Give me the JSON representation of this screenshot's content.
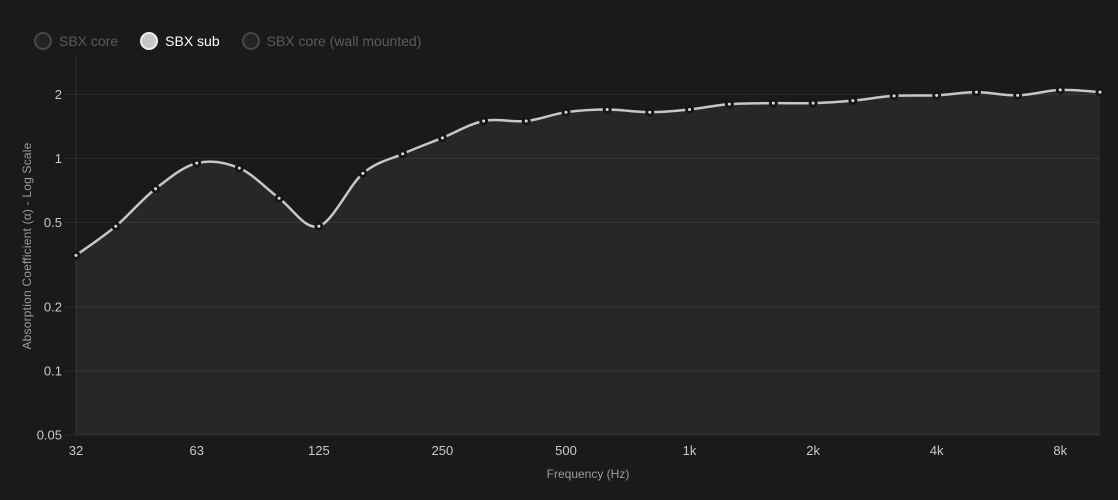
{
  "legend": {
    "items": [
      {
        "label": "SBX core",
        "active": false
      },
      {
        "label": "SBX sub",
        "active": true
      },
      {
        "label": "SBX core (wall mounted)",
        "active": false
      }
    ]
  },
  "chart_data": {
    "type": "line",
    "title": "",
    "xlabel": "Frequency (Hz)",
    "ylabel": "Absorption Coefficient (α) - Log Scale",
    "x_scale": "log",
    "y_scale": "log",
    "xlim": [
      32,
      10000
    ],
    "ylim": [
      0.05,
      3
    ],
    "grid": true,
    "legend_position": "top-left",
    "x_ticks": [
      {
        "value": 32,
        "label": "32"
      },
      {
        "value": 63,
        "label": "63"
      },
      {
        "value": 125,
        "label": "125"
      },
      {
        "value": 250,
        "label": "250"
      },
      {
        "value": 500,
        "label": "500"
      },
      {
        "value": 1000,
        "label": "1k"
      },
      {
        "value": 2000,
        "label": "2k"
      },
      {
        "value": 4000,
        "label": "4k"
      },
      {
        "value": 8000,
        "label": "8k"
      }
    ],
    "y_ticks": [
      {
        "value": 2,
        "label": "2"
      },
      {
        "value": 1,
        "label": "1"
      },
      {
        "value": 0.5,
        "label": "0.5"
      },
      {
        "value": 0.2,
        "label": "0.2"
      },
      {
        "value": 0.1,
        "label": "0.1"
      },
      {
        "value": 0.05,
        "label": "0.05"
      }
    ],
    "series": [
      {
        "name": "SBX core",
        "selected": false,
        "x": [],
        "values": []
      },
      {
        "name": "SBX sub",
        "selected": true,
        "x": [
          32,
          40,
          50,
          63,
          80,
          100,
          125,
          160,
          200,
          250,
          315,
          400,
          500,
          630,
          800,
          1000,
          1250,
          1600,
          2000,
          2500,
          3150,
          4000,
          5000,
          6300,
          8000,
          10000
        ],
        "values": [
          0.35,
          0.48,
          0.72,
          0.95,
          0.9,
          0.65,
          0.48,
          0.85,
          1.05,
          1.25,
          1.5,
          1.5,
          1.65,
          1.7,
          1.65,
          1.7,
          1.8,
          1.82,
          1.82,
          1.87,
          1.97,
          1.98,
          2.05,
          1.98,
          2.1,
          2.05
        ]
      },
      {
        "name": "SBX core (wall mounted)",
        "selected": false,
        "x": [],
        "values": []
      }
    ]
  },
  "colors": {
    "background": "#1a1a1c",
    "line": "#c6c7c8",
    "area_fill": "rgba(255,255,255,0.06)",
    "marker_fill": "#dcdcdc",
    "marker_stroke": "#161618",
    "grid": "#2c2c2e",
    "axis_line": "#2c2c2e",
    "tick_text": "#c8c9ca",
    "axis_title_text": "#9a9b9c",
    "legend_active_text": "#ffffff",
    "legend_dim_text": "#5b5b5d"
  }
}
